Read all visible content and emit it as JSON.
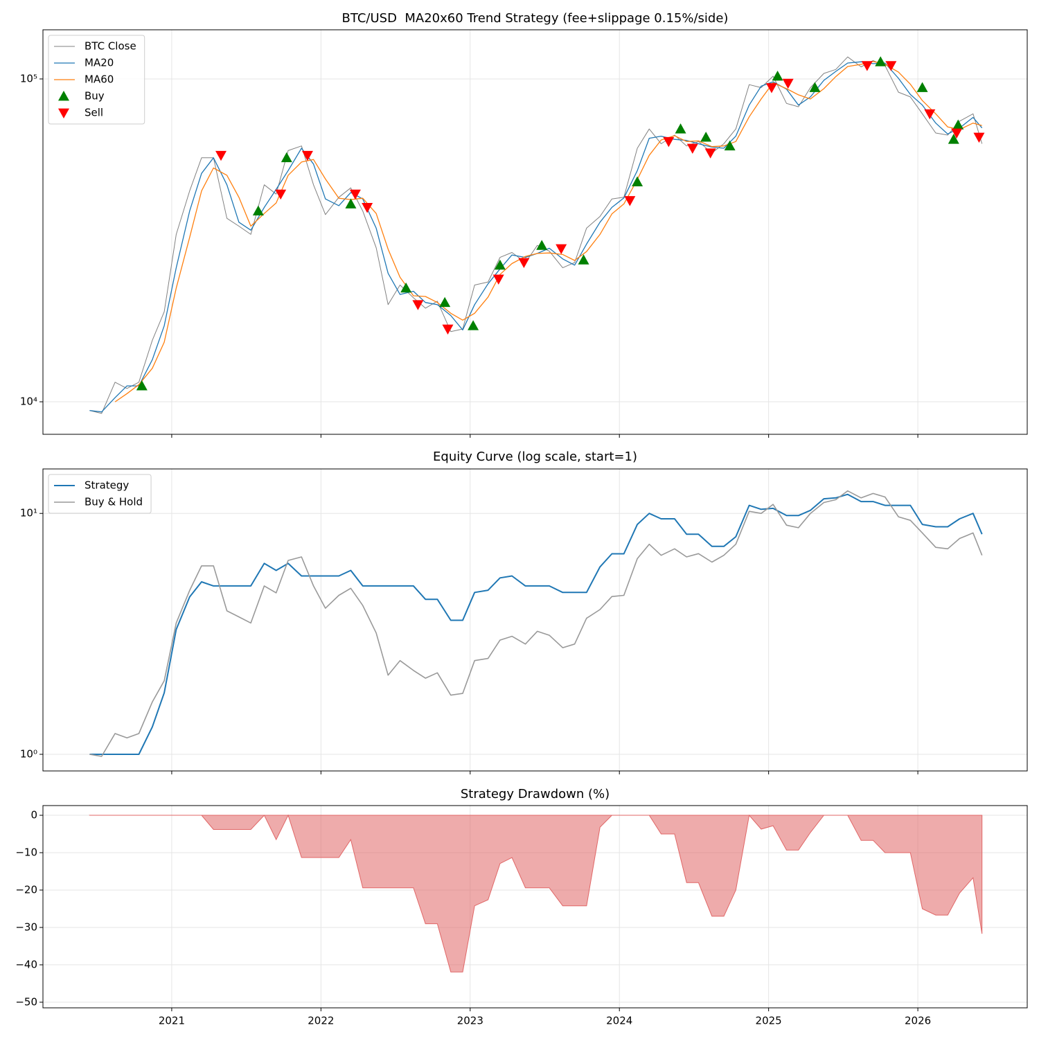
{
  "chart_data": [
    {
      "type": "line",
      "title": "BTC/USD  MA20x60 Trend Strategy (fee+slippage 0.15%/side)",
      "log_y": true,
      "grid": true,
      "legend": "upper left",
      "xlim": [
        2020.137,
        2026.733
      ],
      "xticks": [
        2021,
        2022,
        2023,
        2024,
        2025,
        2026
      ],
      "ylim": [
        7930,
        142000
      ],
      "yticks": [
        {
          "value": 10000,
          "label": "10⁴"
        },
        {
          "value": 100000,
          "label": "10⁵"
        }
      ],
      "x": [
        2020.45,
        2020.53,
        2020.62,
        2020.7,
        2020.78,
        2020.87,
        2020.95,
        2021.03,
        2021.12,
        2021.2,
        2021.28,
        2021.37,
        2021.45,
        2021.53,
        2021.62,
        2021.7,
        2021.78,
        2021.87,
        2021.95,
        2022.03,
        2022.12,
        2022.2,
        2022.28,
        2022.37,
        2022.45,
        2022.53,
        2022.62,
        2022.7,
        2022.78,
        2022.87,
        2022.95,
        2023.03,
        2023.12,
        2023.2,
        2023.28,
        2023.37,
        2023.45,
        2023.53,
        2023.62,
        2023.7,
        2023.78,
        2023.87,
        2023.95,
        2024.03,
        2024.12,
        2024.2,
        2024.28,
        2024.37,
        2024.45,
        2024.53,
        2024.62,
        2024.7,
        2024.78,
        2024.87,
        2024.95,
        2025.03,
        2025.12,
        2025.2,
        2025.28,
        2025.37,
        2025.45,
        2025.53,
        2025.62,
        2025.7,
        2025.78,
        2025.87,
        2025.95,
        2026.03,
        2026.12,
        2026.2,
        2026.28,
        2026.37,
        2026.43
      ],
      "series": [
        {
          "name": "BTC Close",
          "color": "#808080",
          "linewidth": 1,
          "values": [
            9400,
            9200,
            11500,
            11000,
            11500,
            15500,
            19000,
            33000,
            45000,
            57000,
            57000,
            37000,
            35000,
            33000,
            47000,
            44000,
            60000,
            62000,
            47000,
            38000,
            43000,
            46000,
            39000,
            30000,
            20000,
            23000,
            21000,
            19500,
            20500,
            16500,
            16800,
            23000,
            23500,
            28000,
            29000,
            27000,
            30500,
            29300,
            26000,
            27000,
            34500,
            37500,
            42500,
            43000,
            61000,
            70000,
            63000,
            67000,
            62000,
            64000,
            59000,
            63000,
            70000,
            96000,
            94000,
            102000,
            84000,
            82000,
            94000,
            104000,
            107000,
            117000,
            109000,
            114000,
            110000,
            91000,
            88000,
            78000,
            68000,
            67000,
            74000,
            78000,
            63000
          ]
        },
        {
          "name": "MA20",
          "color": "#1f77b4",
          "linewidth": 1.3,
          "values": [
            9400,
            9300,
            10300,
            11200,
            11200,
            13500,
            17200,
            26000,
            39000,
            51000,
            57000,
            47000,
            36000,
            34000,
            40000,
            45500,
            52000,
            61000,
            54500,
            42500,
            40500,
            44500,
            42500,
            34500,
            25000,
            21500,
            22000,
            20300,
            20000,
            18500,
            16700,
            20000,
            23200,
            25800,
            28500,
            28000,
            28800,
            29900,
            27700,
            26500,
            30800,
            36000,
            40000,
            42800,
            52000,
            65500,
            66500,
            65000,
            64500,
            63000,
            61500,
            61000,
            66500,
            83000,
            95000,
            98000,
            93000,
            83000,
            88000,
            99000,
            105500,
            112000,
            113000,
            111500,
            112000,
            100500,
            89500,
            83000,
            73000,
            67500,
            70500,
            76000,
            70500
          ]
        },
        {
          "name": "MA60",
          "color": "#ff7f0e",
          "linewidth": 1.3,
          "values": [
            null,
            null,
            10000,
            10600,
            11300,
            12700,
            15300,
            22500,
            32300,
            45000,
            53000,
            50300,
            43000,
            35000,
            38300,
            41300,
            50300,
            55300,
            56300,
            49000,
            42700,
            42300,
            42700,
            38300,
            29700,
            24300,
            21300,
            21200,
            20300,
            18800,
            17900,
            18800,
            21100,
            24800,
            26800,
            28200,
            28800,
            28900,
            28600,
            27400,
            29200,
            33000,
            38200,
            41000,
            48800,
            58000,
            64700,
            66700,
            64000,
            64300,
            61700,
            62000,
            64000,
            76300,
            86700,
            97300,
            93300,
            89300,
            86700,
            93300,
            101700,
            109300,
            111000,
            113300,
            111000,
            105000,
            96300,
            85700,
            78000,
            71000,
            69700,
            73000,
            71700
          ]
        },
        {
          "name": "Buy",
          "color": "#008000",
          "marker": "triangle-up",
          "x": [
            2020.8,
            2021.58,
            2021.77,
            2022.2,
            2022.57,
            2022.83,
            2023.02,
            2023.2,
            2023.48,
            2023.76,
            2024.12,
            2024.41,
            2024.58,
            2024.74,
            2025.06,
            2025.31,
            2025.75,
            2026.03,
            2026.24,
            2026.27
          ],
          "values": [
            11200,
            39000,
            57000,
            41000,
            22500,
            20300,
            17200,
            26500,
            30500,
            27500,
            48000,
            70000,
            66000,
            62000,
            102000,
            94000,
            113000,
            94000,
            65000,
            72000
          ]
        },
        {
          "name": "Sell",
          "color": "#ff0000",
          "marker": "triangle-down",
          "x": [
            2021.33,
            2021.73,
            2021.91,
            2022.23,
            2022.31,
            2022.65,
            2022.85,
            2023.19,
            2023.36,
            2023.61,
            2024.07,
            2024.33,
            2024.49,
            2024.61,
            2025.02,
            2025.13,
            2025.66,
            2025.82,
            2026.08,
            2026.26,
            2026.41
          ],
          "values": [
            58000,
            44000,
            58000,
            44000,
            40000,
            20000,
            16800,
            24000,
            27000,
            29800,
            42000,
            64000,
            61000,
            59000,
            94000,
            97000,
            110000,
            110000,
            78000,
            68000,
            66000
          ]
        }
      ]
    },
    {
      "type": "line",
      "title": "Equity Curve (log scale, start=1)",
      "log_y": true,
      "grid": true,
      "legend": "upper left",
      "xlim": [
        2020.137,
        2026.733
      ],
      "xticks": [
        2021,
        2022,
        2023,
        2024,
        2025,
        2026
      ],
      "ylim": [
        0.853,
        15.3
      ],
      "yticks": [
        {
          "value": 1,
          "label": "10⁰"
        },
        {
          "value": 10,
          "label": "10¹"
        }
      ],
      "x": [
        2020.45,
        2020.53,
        2020.62,
        2020.7,
        2020.78,
        2020.87,
        2020.95,
        2021.03,
        2021.12,
        2021.2,
        2021.28,
        2021.37,
        2021.45,
        2021.53,
        2021.62,
        2021.7,
        2021.78,
        2021.87,
        2021.95,
        2022.03,
        2022.12,
        2022.2,
        2022.28,
        2022.37,
        2022.45,
        2022.53,
        2022.62,
        2022.7,
        2022.78,
        2022.87,
        2022.95,
        2023.03,
        2023.12,
        2023.2,
        2023.28,
        2023.37,
        2023.45,
        2023.53,
        2023.62,
        2023.7,
        2023.78,
        2023.87,
        2023.95,
        2024.03,
        2024.12,
        2024.2,
        2024.28,
        2024.37,
        2024.45,
        2024.53,
        2024.62,
        2024.7,
        2024.78,
        2024.87,
        2024.95,
        2025.03,
        2025.12,
        2025.2,
        2025.28,
        2025.37,
        2025.45,
        2025.53,
        2025.62,
        2025.7,
        2025.78,
        2025.87,
        2025.95,
        2026.03,
        2026.12,
        2026.2,
        2026.28,
        2026.37,
        2026.43
      ],
      "series": [
        {
          "name": "Strategy",
          "color": "#1f77b4",
          "linewidth": 2,
          "values": [
            1,
            1,
            1,
            1,
            1,
            1.3,
            1.8,
            3.3,
            4.5,
            5.2,
            5.0,
            5.0,
            5.0,
            5.0,
            6.2,
            5.8,
            6.2,
            5.5,
            5.5,
            5.5,
            5.5,
            5.8,
            5.0,
            5.0,
            5.0,
            5.0,
            5.0,
            4.4,
            4.4,
            3.6,
            3.6,
            4.7,
            4.8,
            5.4,
            5.5,
            5.0,
            5.0,
            5.0,
            4.7,
            4.7,
            4.7,
            6.0,
            6.8,
            6.8,
            9.0,
            10.0,
            9.5,
            9.5,
            8.2,
            8.2,
            7.3,
            7.3,
            8.0,
            10.8,
            10.4,
            10.5,
            9.8,
            9.8,
            10.3,
            11.5,
            11.6,
            12.0,
            11.2,
            11.2,
            10.8,
            10.8,
            10.8,
            9.0,
            8.8,
            8.8,
            9.5,
            10.0,
            8.2
          ]
        },
        {
          "name": "Buy & Hold",
          "color": "#999999",
          "linewidth": 1.6,
          "values": [
            1.0,
            0.98,
            1.22,
            1.17,
            1.22,
            1.65,
            2.02,
            3.51,
            4.79,
            6.06,
            6.06,
            3.94,
            3.72,
            3.51,
            5.0,
            4.68,
            6.38,
            6.6,
            5.0,
            4.04,
            4.57,
            4.89,
            4.15,
            3.19,
            2.13,
            2.45,
            2.23,
            2.07,
            2.18,
            1.76,
            1.79,
            2.45,
            2.5,
            2.98,
            3.09,
            2.87,
            3.24,
            3.12,
            2.77,
            2.87,
            3.67,
            3.99,
            4.52,
            4.57,
            6.49,
            7.45,
            6.7,
            7.13,
            6.6,
            6.81,
            6.28,
            6.7,
            7.45,
            10.2,
            10.0,
            10.9,
            8.94,
            8.72,
            10.0,
            11.1,
            11.4,
            12.4,
            11.6,
            12.1,
            11.7,
            9.68,
            9.36,
            8.3,
            7.23,
            7.13,
            7.87,
            8.3,
            6.7
          ]
        }
      ]
    },
    {
      "type": "area",
      "title": "Strategy Drawdown (%)",
      "log_y": false,
      "grid": true,
      "xlim": [
        2020.137,
        2026.733
      ],
      "xticks": [
        2021,
        2022,
        2023,
        2024,
        2025,
        2026
      ],
      "ylim": [
        -51.5,
        2.6
      ],
      "yticks": [
        0,
        {
          "value": -10,
          "label": "−10"
        },
        {
          "value": -20,
          "label": "−20"
        },
        {
          "value": -30,
          "label": "−30"
        },
        {
          "value": -40,
          "label": "−40"
        },
        {
          "value": -50,
          "label": "−50"
        }
      ],
      "x": [
        2020.45,
        2020.53,
        2020.62,
        2020.7,
        2020.78,
        2020.87,
        2020.95,
        2021.03,
        2021.12,
        2021.2,
        2021.28,
        2021.37,
        2021.45,
        2021.53,
        2021.62,
        2021.7,
        2021.78,
        2021.87,
        2021.95,
        2022.03,
        2022.12,
        2022.2,
        2022.28,
        2022.37,
        2022.45,
        2022.53,
        2022.62,
        2022.7,
        2022.78,
        2022.87,
        2022.95,
        2023.03,
        2023.12,
        2023.2,
        2023.28,
        2023.37,
        2023.45,
        2023.53,
        2023.62,
        2023.7,
        2023.78,
        2023.87,
        2023.95,
        2024.03,
        2024.12,
        2024.2,
        2024.28,
        2024.37,
        2024.45,
        2024.53,
        2024.62,
        2024.7,
        2024.78,
        2024.87,
        2024.95,
        2025.03,
        2025.12,
        2025.2,
        2025.28,
        2025.37,
        2025.45,
        2025.53,
        2025.62,
        2025.7,
        2025.78,
        2025.87,
        2025.95,
        2026.03,
        2026.12,
        2026.2,
        2026.28,
        2026.37,
        2026.43
      ],
      "color": "#e06666",
      "values": [
        0,
        0,
        0,
        0,
        0,
        0,
        0,
        0,
        0,
        0,
        -3.8,
        -3.8,
        -3.8,
        -3.8,
        0,
        -6.5,
        0,
        -11.3,
        -11.3,
        -11.3,
        -11.3,
        -6.5,
        -19.4,
        -19.4,
        -19.4,
        -19.4,
        -19.4,
        -29,
        -29,
        -41.9,
        -41.9,
        -24.2,
        -22.6,
        -12.9,
        -11.3,
        -19.4,
        -19.4,
        -19.4,
        -24.2,
        -24.2,
        -24.2,
        -3.2,
        0,
        0,
        0,
        0,
        -5,
        -5,
        -18,
        -18,
        -27,
        -27,
        -20,
        0,
        -3.7,
        -2.8,
        -9.3,
        -9.3,
        -4.6,
        0,
        0,
        0,
        -6.7,
        -6.7,
        -10,
        -10,
        -10,
        -25,
        -26.7,
        -26.7,
        -20.8,
        -16.7,
        -31.7
      ]
    }
  ]
}
